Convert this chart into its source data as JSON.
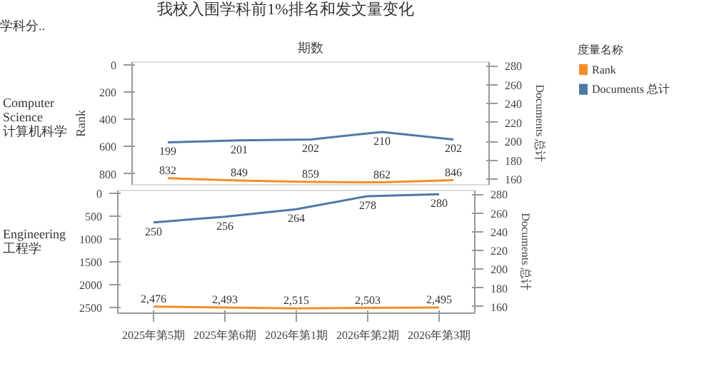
{
  "chart_data": [
    {
      "type": "line",
      "title": "我校入围学科前1%排名和发文量变化",
      "xlabel": "期数",
      "ylabel": "Rank",
      "y2label": "Documents 总计",
      "legend_title": "度量名称",
      "annotations": [
        "学科分..",
        "Computer Science\n计算机科学"
      ],
      "series": [
        {
          "name": "Rank",
          "color": "#f28e2b",
          "values": [
            832,
            849,
            859,
            862,
            846
          ]
        },
        {
          "name": "Documents 总计",
          "color": "#4e79a7",
          "axis": "y2",
          "values": [
            199,
            201,
            202,
            210,
            202
          ]
        }
      ],
      "ylim": [
        880,
        -20
      ],
      "yticks": [
        0,
        200,
        400,
        600,
        800
      ],
      "y2lim": [
        154,
        284
      ],
      "y2ticks": [
        160,
        180,
        200,
        220,
        240,
        260,
        280
      ],
      "data_labels": true,
      "grid": false,
      "legend": "top right",
      "tick_labels": "y"
    },
    {
      "type": "line",
      "y2label": "Documents 总计",
      "annotations": [
        "Engineering\n工程学"
      ],
      "categories": [
        "2025年第5期",
        "2025年第6期",
        "2026年第1期",
        "2026年第2期",
        "2026年第3期"
      ],
      "series": [
        {
          "color": "#f28e2b",
          "values": [
            2476,
            2493,
            2515,
            2503,
            2495
          ],
          "value_labels": [
            "2,476",
            "2,493",
            "2,515",
            "2,503",
            "2,495"
          ]
        },
        {
          "color": "#4e79a7",
          "axis": "y2",
          "values": [
            250,
            256,
            264,
            278,
            280
          ]
        }
      ],
      "ylim": [
        2620,
        -70
      ],
      "yticks": [
        0,
        500,
        1000,
        1500,
        2000,
        2500
      ],
      "y2lim": [
        153,
        284
      ],
      "y2ticks": [
        160,
        180,
        200,
        220,
        240,
        260,
        280
      ],
      "data_labels": true,
      "grid": false,
      "legend": false
    }
  ]
}
